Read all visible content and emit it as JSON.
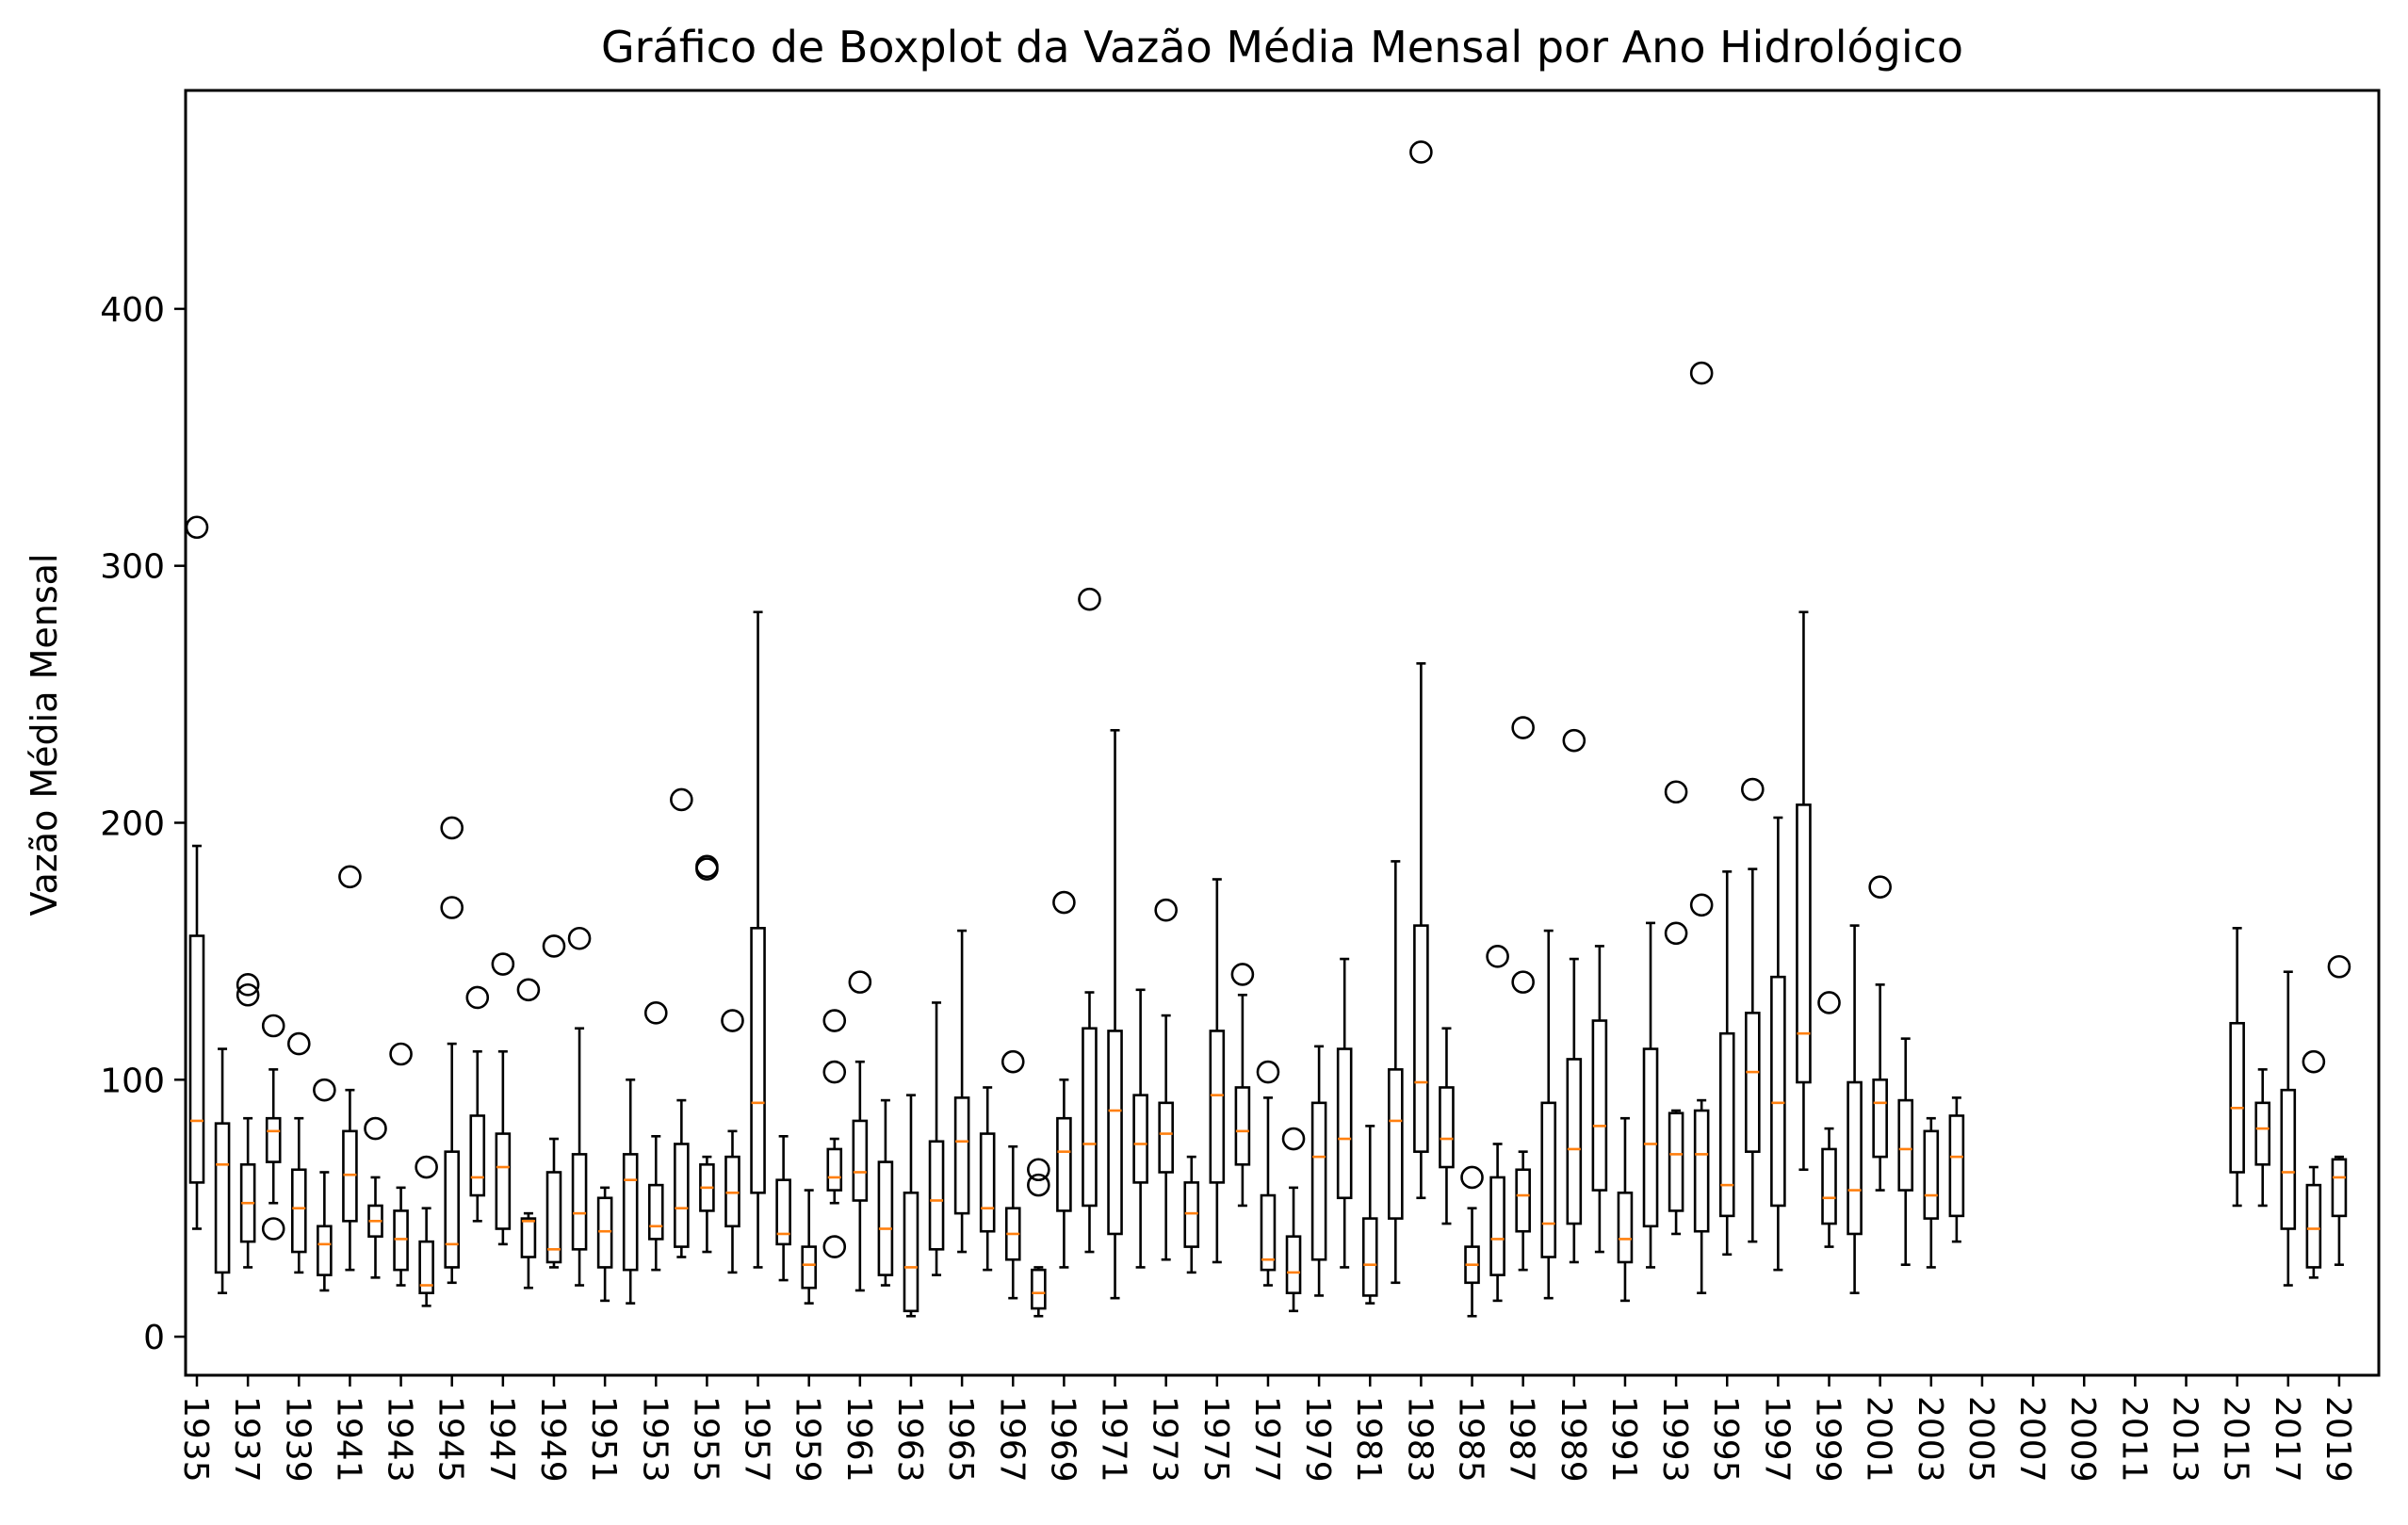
{
  "chart_data": {
    "type": "boxplot",
    "title": "Gráfico de Boxplot da Vazão Média Mensal por Ano Hidrológico",
    "xlabel": "",
    "ylabel": "Vazão Média Mensal",
    "ylim": [
      -15,
      485
    ],
    "yticks": [
      0,
      100,
      200,
      300,
      400
    ],
    "x_labeled_every": 2,
    "grid": false,
    "colors": {
      "box": "#000000",
      "median": "#ff7f0e",
      "flier": "#000000",
      "background": "#ffffff"
    },
    "categories": [
      "1935",
      "1936",
      "1937",
      "1938",
      "1939",
      "1940",
      "1941",
      "1942",
      "1943",
      "1944",
      "1945",
      "1946",
      "1947",
      "1948",
      "1949",
      "1950",
      "1951",
      "1952",
      "1953",
      "1954",
      "1955",
      "1956",
      "1957",
      "1958",
      "1959",
      "1960",
      "1961",
      "1962",
      "1963",
      "1964",
      "1965",
      "1966",
      "1967",
      "1968",
      "1969",
      "1970",
      "1971",
      "1972",
      "1973",
      "1974",
      "1975",
      "1976",
      "1977",
      "1978",
      "1979",
      "1980",
      "1981",
      "1982",
      "1983",
      "1984",
      "1985",
      "1986",
      "1987",
      "1988",
      "1989",
      "1990",
      "1991",
      "1992",
      "1993",
      "1994",
      "1995",
      "1996",
      "1997",
      "1998",
      "1999",
      "2000",
      "2001",
      "2002",
      "2003",
      "2004",
      "2005",
      "2006",
      "2007",
      "2008",
      "2009",
      "2010",
      "2011",
      "2012",
      "2013",
      "2014",
      "2015",
      "2016",
      "2017",
      "2018",
      "2019",
      "2020"
    ],
    "boxes": [
      {
        "year": "1935",
        "whislo": 42,
        "q1": 60,
        "med": 84,
        "q3": 156,
        "whishi": 191,
        "fliers": [
          315
        ]
      },
      {
        "year": "1936",
        "whislo": 17,
        "q1": 25,
        "med": 67,
        "q3": 83,
        "whishi": 112,
        "fliers": []
      },
      {
        "year": "1937",
        "whislo": 27,
        "q1": 37,
        "med": 52,
        "q3": 67,
        "whishi": 85,
        "fliers": [
          133,
          137
        ]
      },
      {
        "year": "1938",
        "whislo": 52,
        "q1": 68,
        "med": 80,
        "q3": 85,
        "whishi": 104,
        "fliers": [
          42,
          121
        ]
      },
      {
        "year": "1939",
        "whislo": 25,
        "q1": 33,
        "med": 50,
        "q3": 65,
        "whishi": 85,
        "fliers": [
          114
        ]
      },
      {
        "year": "1940",
        "whislo": 18,
        "q1": 24,
        "med": 36,
        "q3": 43,
        "whishi": 64,
        "fliers": [
          96
        ]
      },
      {
        "year": "1941",
        "whislo": 26,
        "q1": 45,
        "med": 63,
        "q3": 80,
        "whishi": 96,
        "fliers": [
          179
        ]
      },
      {
        "year": "1942",
        "whislo": 23,
        "q1": 39,
        "med": 45,
        "q3": 51,
        "whishi": 62,
        "fliers": [
          81
        ]
      },
      {
        "year": "1943",
        "whislo": 20,
        "q1": 26,
        "med": 38,
        "q3": 49,
        "whishi": 58,
        "fliers": [
          110
        ]
      },
      {
        "year": "1944",
        "whislo": 12,
        "q1": 17,
        "med": 20,
        "q3": 37,
        "whishi": 50,
        "fliers": [
          66
        ]
      },
      {
        "year": "1945",
        "whislo": 21,
        "q1": 27,
        "med": 36,
        "q3": 72,
        "whishi": 114,
        "fliers": [
          167,
          198
        ]
      },
      {
        "year": "1946",
        "whislo": 45,
        "q1": 55,
        "med": 62,
        "q3": 86,
        "whishi": 111,
        "fliers": [
          132
        ]
      },
      {
        "year": "1947",
        "whislo": 36,
        "q1": 42,
        "med": 66,
        "q3": 79,
        "whishi": 111,
        "fliers": [
          145
        ]
      },
      {
        "year": "1948",
        "whislo": 19,
        "q1": 31,
        "med": 45,
        "q3": 46,
        "whishi": 48,
        "fliers": [
          135
        ]
      },
      {
        "year": "1949",
        "whislo": 27,
        "q1": 29,
        "med": 34,
        "q3": 64,
        "whishi": 77,
        "fliers": [
          152
        ]
      },
      {
        "year": "1950",
        "whislo": 20,
        "q1": 34,
        "med": 48,
        "q3": 71,
        "whishi": 120,
        "fliers": [
          155
        ]
      },
      {
        "year": "1951",
        "whislo": 14,
        "q1": 27,
        "med": 41,
        "q3": 54,
        "whishi": 58,
        "fliers": []
      },
      {
        "year": "1952",
        "whislo": 13,
        "q1": 26,
        "med": 61,
        "q3": 71,
        "whishi": 100,
        "fliers": []
      },
      {
        "year": "1953",
        "whislo": 26,
        "q1": 38,
        "med": 43,
        "q3": 59,
        "whishi": 78,
        "fliers": [
          126
        ]
      },
      {
        "year": "1954",
        "whislo": 31,
        "q1": 35,
        "med": 50,
        "q3": 75,
        "whishi": 92,
        "fliers": [
          209
        ]
      },
      {
        "year": "1955",
        "whislo": 33,
        "q1": 49,
        "med": 58,
        "q3": 67,
        "whishi": 70,
        "fliers": [
          182,
          183
        ]
      },
      {
        "year": "1956",
        "whislo": 25,
        "q1": 43,
        "med": 56,
        "q3": 70,
        "whishi": 80,
        "fliers": [
          123
        ]
      },
      {
        "year": "1957",
        "whislo": 27,
        "q1": 56,
        "med": 91,
        "q3": 159,
        "whishi": 282,
        "fliers": []
      },
      {
        "year": "1958",
        "whislo": 22,
        "q1": 36,
        "med": 40,
        "q3": 61,
        "whishi": 78,
        "fliers": []
      },
      {
        "year": "1959",
        "whislo": 13,
        "q1": 19,
        "med": 28,
        "q3": 35,
        "whishi": 57,
        "fliers": []
      },
      {
        "year": "1960",
        "whislo": 52,
        "q1": 57,
        "med": 62,
        "q3": 73,
        "whishi": 77,
        "fliers": [
          35,
          103,
          123
        ]
      },
      {
        "year": "1961",
        "whislo": 18,
        "q1": 53,
        "med": 64,
        "q3": 84,
        "whishi": 107,
        "fliers": [
          138
        ]
      },
      {
        "year": "1962",
        "whislo": 20,
        "q1": 24,
        "med": 42,
        "q3": 68,
        "whishi": 92,
        "fliers": []
      },
      {
        "year": "1963",
        "whislo": 8,
        "q1": 10,
        "med": 27,
        "q3": 56,
        "whishi": 94,
        "fliers": []
      },
      {
        "year": "1964",
        "whislo": 24,
        "q1": 34,
        "med": 53,
        "q3": 76,
        "whishi": 130,
        "fliers": []
      },
      {
        "year": "1965",
        "whislo": 33,
        "q1": 48,
        "med": 76,
        "q3": 93,
        "whishi": 158,
        "fliers": []
      },
      {
        "year": "1966",
        "whislo": 26,
        "q1": 41,
        "med": 50,
        "q3": 79,
        "whishi": 97,
        "fliers": []
      },
      {
        "year": "1967",
        "whislo": 15,
        "q1": 30,
        "med": 40,
        "q3": 50,
        "whishi": 74,
        "fliers": [
          107
        ]
      },
      {
        "year": "1968",
        "whislo": 8,
        "q1": 11,
        "med": 17,
        "q3": 26,
        "whishi": 27,
        "fliers": [
          59,
          65
        ]
      },
      {
        "year": "1969",
        "whislo": 27,
        "q1": 49,
        "med": 72,
        "q3": 85,
        "whishi": 100,
        "fliers": [
          169
        ]
      },
      {
        "year": "1970",
        "whislo": 33,
        "q1": 51,
        "med": 75,
        "q3": 120,
        "whishi": 134,
        "fliers": [
          287
        ]
      },
      {
        "year": "1971",
        "whislo": 15,
        "q1": 40,
        "med": 88,
        "q3": 119,
        "whishi": 236,
        "fliers": []
      },
      {
        "year": "1972",
        "whislo": 27,
        "q1": 60,
        "med": 75,
        "q3": 94,
        "whishi": 135,
        "fliers": []
      },
      {
        "year": "1973",
        "whislo": 30,
        "q1": 64,
        "med": 79,
        "q3": 91,
        "whishi": 125,
        "fliers": [
          166
        ]
      },
      {
        "year": "1974",
        "whislo": 25,
        "q1": 35,
        "med": 48,
        "q3": 60,
        "whishi": 70,
        "fliers": []
      },
      {
        "year": "1975",
        "whislo": 29,
        "q1": 60,
        "med": 94,
        "q3": 119,
        "whishi": 178,
        "fliers": []
      },
      {
        "year": "1976",
        "whislo": 51,
        "q1": 67,
        "med": 80,
        "q3": 97,
        "whishi": 133,
        "fliers": [
          141
        ]
      },
      {
        "year": "1977",
        "whislo": 20,
        "q1": 26,
        "med": 30,
        "q3": 55,
        "whishi": 93,
        "fliers": [
          103
        ]
      },
      {
        "year": "1978",
        "whislo": 10,
        "q1": 17,
        "med": 25,
        "q3": 39,
        "whishi": 58,
        "fliers": [
          77
        ]
      },
      {
        "year": "1979",
        "whislo": 16,
        "q1": 30,
        "med": 70,
        "q3": 91,
        "whishi": 113,
        "fliers": []
      },
      {
        "year": "1980",
        "whislo": 27,
        "q1": 54,
        "med": 77,
        "q3": 112,
        "whishi": 147,
        "fliers": []
      },
      {
        "year": "1981",
        "whislo": 13,
        "q1": 16,
        "med": 28,
        "q3": 46,
        "whishi": 82,
        "fliers": []
      },
      {
        "year": "1982",
        "whislo": 21,
        "q1": 46,
        "med": 84,
        "q3": 104,
        "whishi": 185,
        "fliers": []
      },
      {
        "year": "1983",
        "whislo": 54,
        "q1": 72,
        "med": 99,
        "q3": 160,
        "whishi": 262,
        "fliers": [
          461
        ]
      },
      {
        "year": "1984",
        "whislo": 44,
        "q1": 66,
        "med": 77,
        "q3": 97,
        "whishi": 120,
        "fliers": []
      },
      {
        "year": "1985",
        "whislo": 8,
        "q1": 21,
        "med": 28,
        "q3": 35,
        "whishi": 50,
        "fliers": [
          62
        ]
      },
      {
        "year": "1986",
        "whislo": 14,
        "q1": 24,
        "med": 38,
        "q3": 62,
        "whishi": 75,
        "fliers": [
          148
        ]
      },
      {
        "year": "1987",
        "whislo": 26,
        "q1": 41,
        "med": 55,
        "q3": 65,
        "whishi": 72,
        "fliers": [
          138,
          237
        ]
      },
      {
        "year": "1988",
        "whislo": 15,
        "q1": 31,
        "med": 44,
        "q3": 91,
        "whishi": 158,
        "fliers": []
      },
      {
        "year": "1989",
        "whislo": 29,
        "q1": 44,
        "med": 73,
        "q3": 108,
        "whishi": 147,
        "fliers": [
          232
        ]
      },
      {
        "year": "1990",
        "whislo": 33,
        "q1": 57,
        "med": 82,
        "q3": 123,
        "whishi": 152,
        "fliers": []
      },
      {
        "year": "1991",
        "whislo": 14,
        "q1": 29,
        "med": 38,
        "q3": 56,
        "whishi": 85,
        "fliers": []
      },
      {
        "year": "1992",
        "whislo": 27,
        "q1": 43,
        "med": 75,
        "q3": 112,
        "whishi": 161,
        "fliers": []
      },
      {
        "year": "1993",
        "whislo": 40,
        "q1": 49,
        "med": 71,
        "q3": 87,
        "whishi": 88,
        "fliers": [
          157,
          212
        ]
      },
      {
        "year": "1994",
        "whislo": 17,
        "q1": 41,
        "med": 71,
        "q3": 88,
        "whishi": 92,
        "fliers": [
          168,
          375
        ]
      },
      {
        "year": "1995",
        "whislo": 32,
        "q1": 47,
        "med": 59,
        "q3": 118,
        "whishi": 181,
        "fliers": []
      },
      {
        "year": "1996",
        "whislo": 37,
        "q1": 72,
        "med": 103,
        "q3": 126,
        "whishi": 182,
        "fliers": [
          213
        ]
      },
      {
        "year": "1997",
        "whislo": 26,
        "q1": 51,
        "med": 91,
        "q3": 140,
        "whishi": 202,
        "fliers": []
      },
      {
        "year": "1998",
        "whislo": 65,
        "q1": 99,
        "med": 118,
        "q3": 207,
        "whishi": 282,
        "fliers": []
      },
      {
        "year": "1999",
        "whislo": 35,
        "q1": 44,
        "med": 54,
        "q3": 73,
        "whishi": 81,
        "fliers": [
          130
        ]
      },
      {
        "year": "2000",
        "whislo": 17,
        "q1": 40,
        "med": 57,
        "q3": 99,
        "whishi": 160,
        "fliers": []
      },
      {
        "year": "2001",
        "whislo": 57,
        "q1": 70,
        "med": 91,
        "q3": 100,
        "whishi": 137,
        "fliers": [
          175
        ]
      },
      {
        "year": "2002",
        "whislo": 28,
        "q1": 57,
        "med": 73,
        "q3": 92,
        "whishi": 116,
        "fliers": []
      },
      {
        "year": "2003",
        "whislo": 27,
        "q1": 46,
        "med": 55,
        "q3": 80,
        "whishi": 85,
        "fliers": []
      },
      {
        "year": "2004",
        "whislo": 37,
        "q1": 47,
        "med": 70,
        "q3": 86,
        "whishi": 93,
        "fliers": []
      },
      {
        "year": "2005",
        "whislo": null,
        "q1": null,
        "med": null,
        "q3": null,
        "whishi": null,
        "fliers": []
      },
      {
        "year": "2006",
        "whislo": null,
        "q1": null,
        "med": null,
        "q3": null,
        "whishi": null,
        "fliers": []
      },
      {
        "year": "2007",
        "whislo": null,
        "q1": null,
        "med": null,
        "q3": null,
        "whishi": null,
        "fliers": []
      },
      {
        "year": "2008",
        "whislo": null,
        "q1": null,
        "med": null,
        "q3": null,
        "whishi": null,
        "fliers": []
      },
      {
        "year": "2009",
        "whislo": null,
        "q1": null,
        "med": null,
        "q3": null,
        "whishi": null,
        "fliers": []
      },
      {
        "year": "2010",
        "whislo": null,
        "q1": null,
        "med": null,
        "q3": null,
        "whishi": null,
        "fliers": []
      },
      {
        "year": "2011",
        "whislo": null,
        "q1": null,
        "med": null,
        "q3": null,
        "whishi": null,
        "fliers": []
      },
      {
        "year": "2012",
        "whislo": null,
        "q1": null,
        "med": null,
        "q3": null,
        "whishi": null,
        "fliers": []
      },
      {
        "year": "2013",
        "whislo": null,
        "q1": null,
        "med": null,
        "q3": null,
        "whishi": null,
        "fliers": []
      },
      {
        "year": "2014",
        "whislo": null,
        "q1": null,
        "med": null,
        "q3": null,
        "whishi": null,
        "fliers": []
      },
      {
        "year": "2015",
        "whislo": 51,
        "q1": 64,
        "med": 89,
        "q3": 122,
        "whishi": 159,
        "fliers": []
      },
      {
        "year": "2016",
        "whislo": 51,
        "q1": 67,
        "med": 81,
        "q3": 91,
        "whishi": 104,
        "fliers": []
      },
      {
        "year": "2017",
        "whislo": 20,
        "q1": 42,
        "med": 64,
        "q3": 96,
        "whishi": 142,
        "fliers": []
      },
      {
        "year": "2018",
        "whislo": 23,
        "q1": 27,
        "med": 42,
        "q3": 59,
        "whishi": 66,
        "fliers": [
          107
        ]
      },
      {
        "year": "2019",
        "whislo": 28,
        "q1": 47,
        "med": 62,
        "q3": 69,
        "whishi": 70,
        "fliers": [
          144
        ]
      }
    ]
  }
}
